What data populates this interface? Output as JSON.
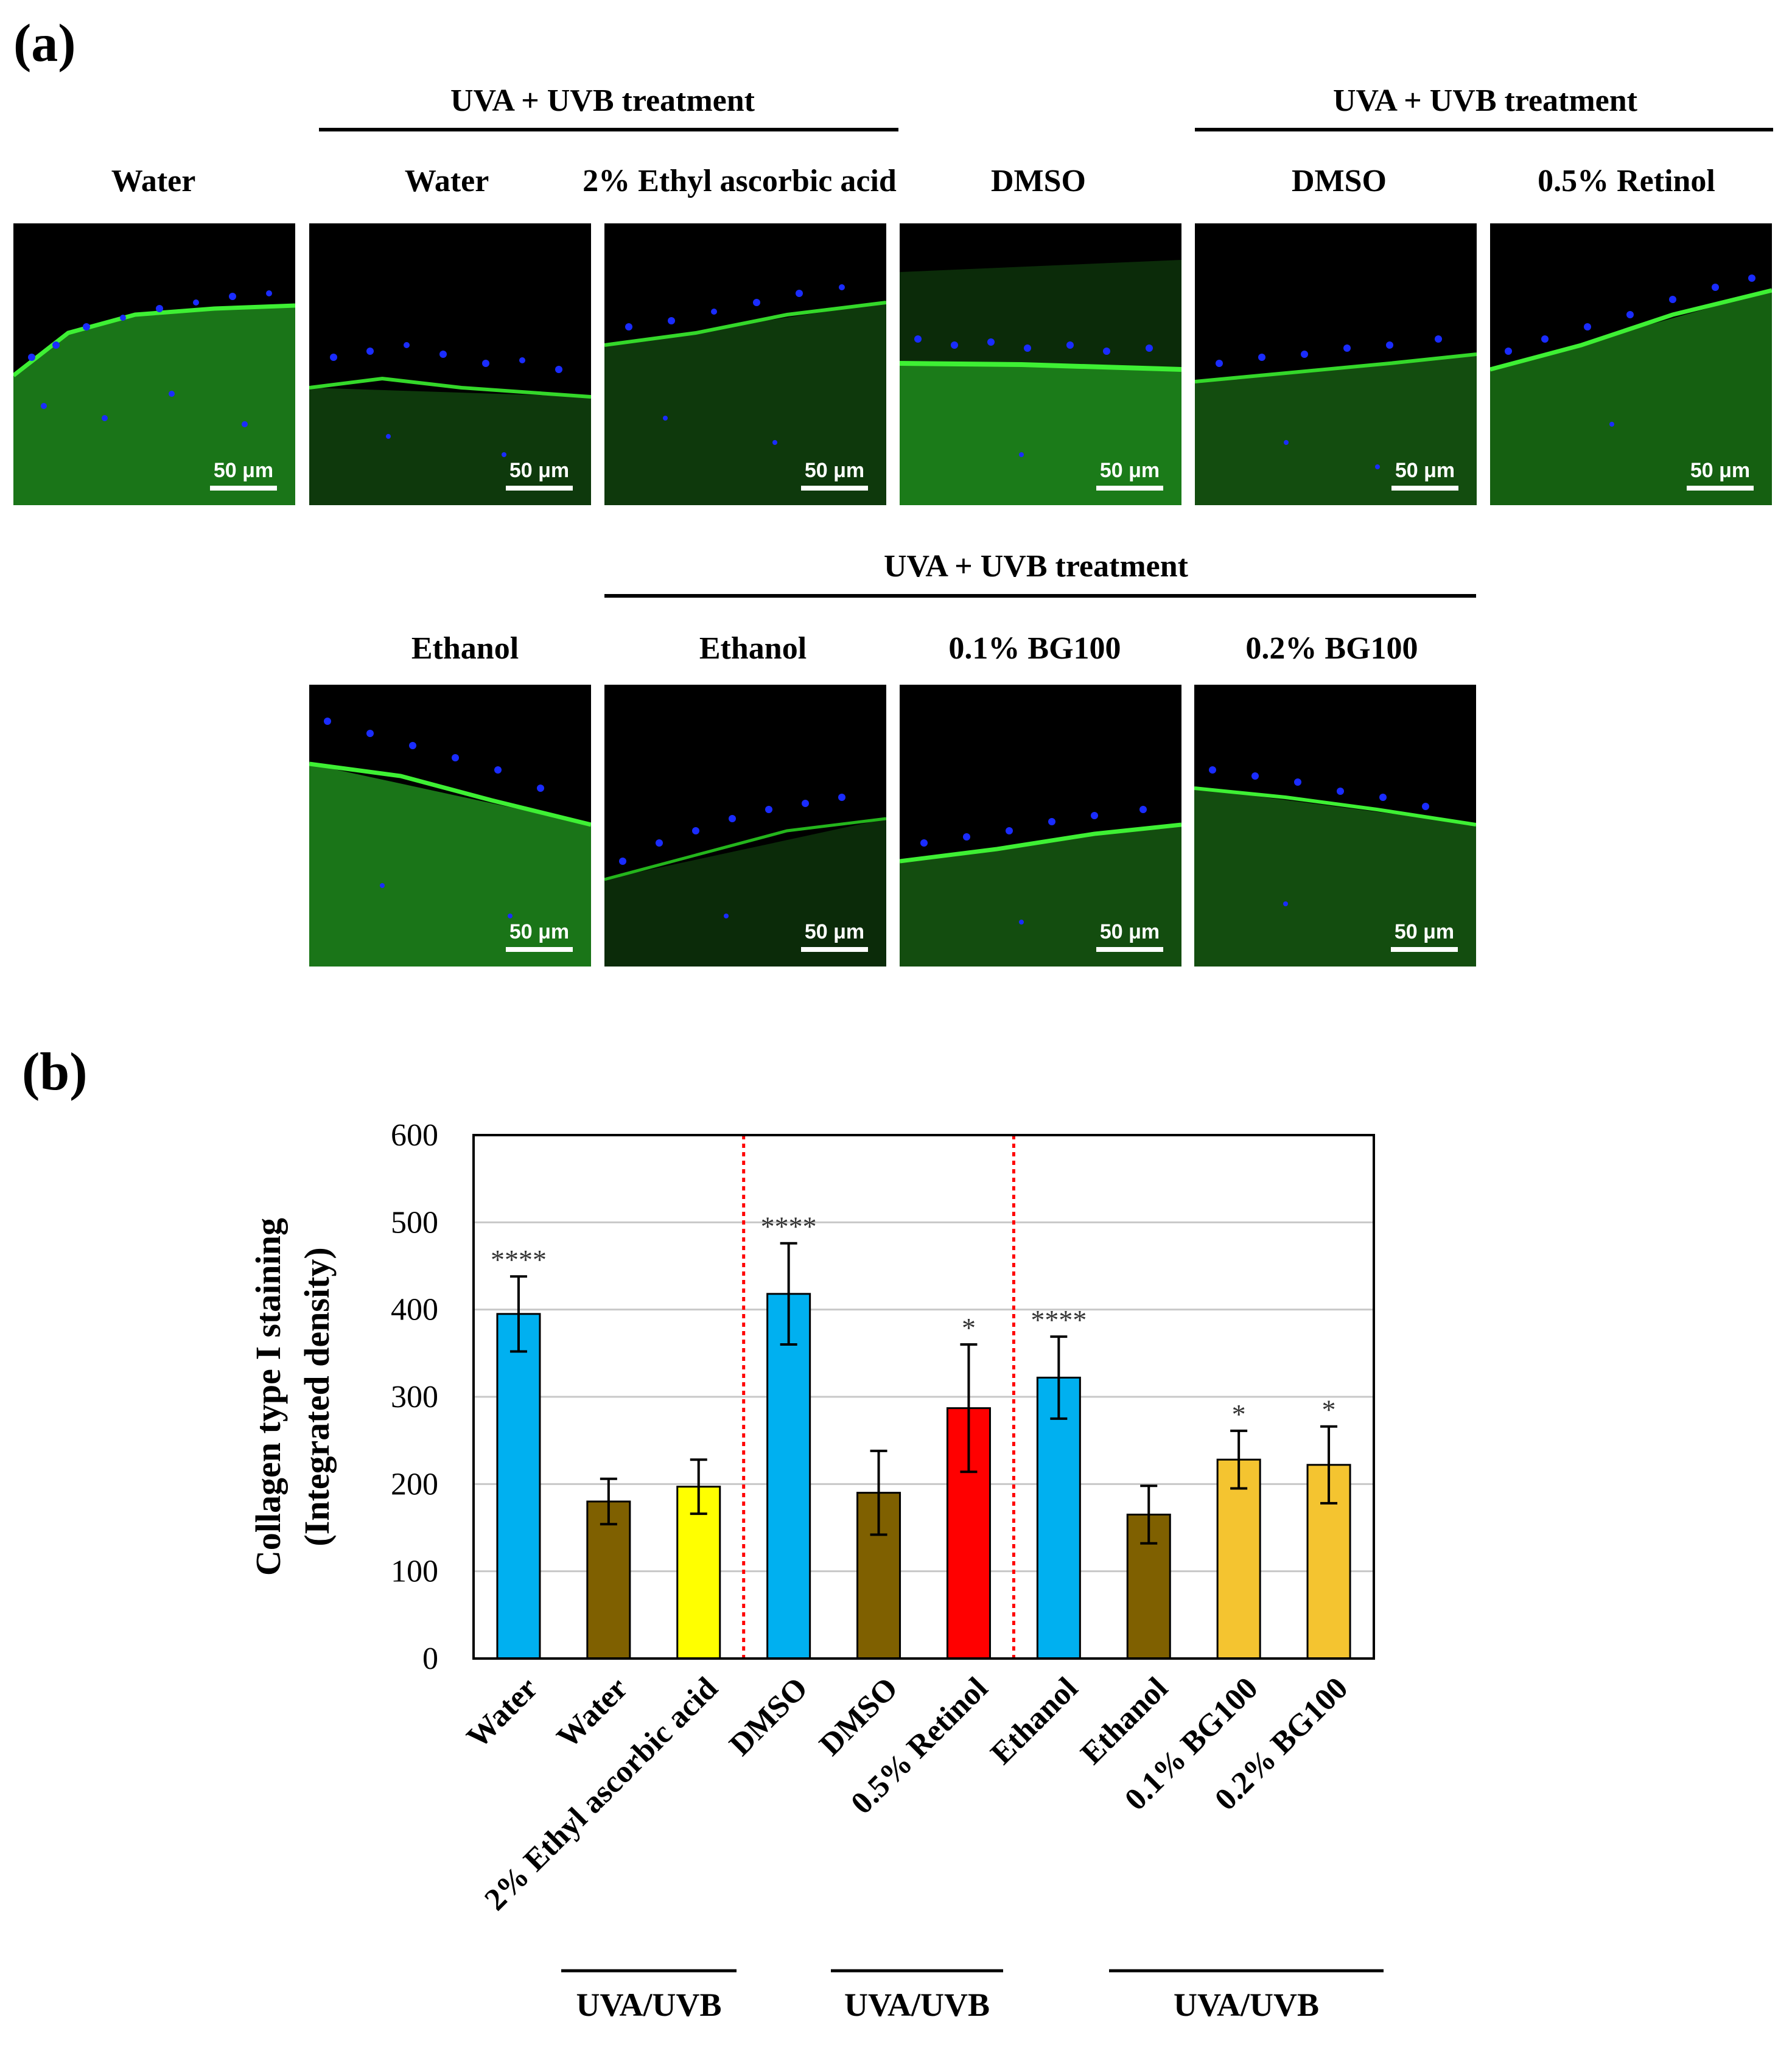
{
  "panel_a": {
    "label": "(a)",
    "group_label": "UVA + UVB treatment",
    "scale_label": "50 μm",
    "row1": [
      "Water",
      "Water",
      "2% Ethyl ascorbic acid",
      "DMSO",
      "DMSO",
      "0.5% Retinol"
    ],
    "row2": [
      "Ethanol",
      "Ethanol",
      "0.1% BG100",
      "0.2% BG100"
    ],
    "stain_colors": {
      "collagen": "#22c81e",
      "nuclei": "#1a2cff",
      "background": "#000000"
    }
  },
  "panel_b": {
    "label": "(b)",
    "group_label": "UVA/UVB"
  },
  "chart_data": {
    "type": "bar",
    "title": "",
    "ylabel_line1": "Collagen type I staining",
    "ylabel_line2": "(Integrated density)",
    "xlabel": "",
    "ylim": [
      0,
      600
    ],
    "yticks": [
      0,
      100,
      200,
      300,
      400,
      500,
      600
    ],
    "grid": true,
    "categories": [
      "Water",
      "Water",
      "2% Ethyl ascorbic acid",
      "DMSO",
      "DMSO",
      "0.5% Retinol",
      "Ethanol",
      "Ethanol",
      "0.1% BG100",
      "0.2% BG100"
    ],
    "values": [
      395,
      180,
      197,
      418,
      190,
      287,
      322,
      165,
      228,
      222
    ],
    "errors": [
      43,
      26,
      31,
      58,
      48,
      73,
      47,
      33,
      33,
      44
    ],
    "significance": [
      "****",
      "",
      "",
      "****",
      "",
      "*",
      "****",
      "",
      "*",
      "*"
    ],
    "bar_colors": [
      "#00b0f0",
      "#7f6000",
      "#ffff00",
      "#00b0f0",
      "#7f6000",
      "#ff0000",
      "#00b0f0",
      "#7f6000",
      "#f4c430",
      "#f4c430"
    ],
    "divider_color": "#ff0000",
    "group_brackets": [
      "UVA/UVB",
      "UVA/UVB",
      "UVA/UVB"
    ]
  }
}
